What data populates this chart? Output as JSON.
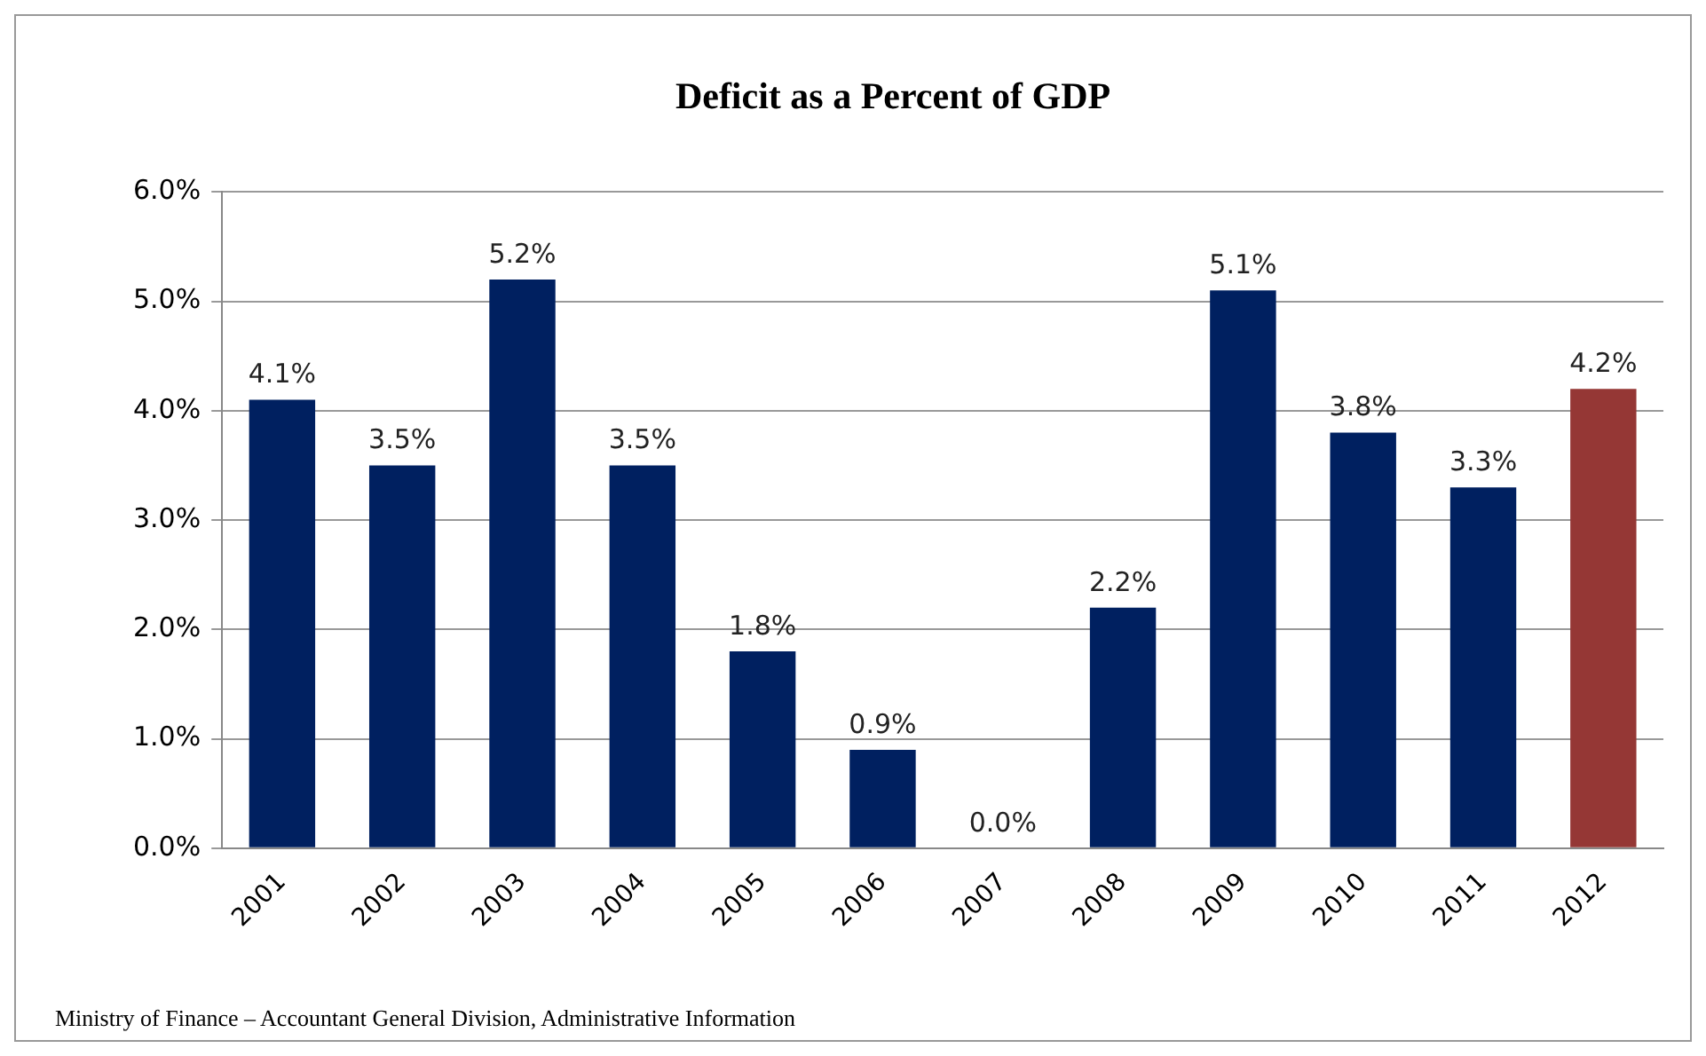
{
  "chart_data": {
    "type": "bar",
    "title": "Deficit as a Percent of GDP",
    "categories": [
      "2001",
      "2002",
      "2003",
      "2004",
      "2005",
      "2006",
      "2007",
      "2008",
      "2009",
      "2010",
      "2011",
      "2012"
    ],
    "values": [
      4.1,
      3.5,
      5.2,
      3.5,
      1.8,
      0.9,
      0.0,
      2.2,
      5.1,
      3.8,
      3.3,
      4.2
    ],
    "colors": [
      "#002060",
      "#002060",
      "#002060",
      "#002060",
      "#002060",
      "#002060",
      "#002060",
      "#002060",
      "#002060",
      "#002060",
      "#002060",
      "#953735"
    ],
    "value_labels": [
      "4.1%",
      "3.5%",
      "5.2%",
      "3.5%",
      "1.8%",
      "0.9%",
      "0.0%",
      "2.2%",
      "5.1%",
      "3.8%",
      "3.3%",
      "4.2%"
    ],
    "ylim": [
      0,
      6
    ],
    "yticks": [
      {
        "value": 0,
        "label": "0.0%"
      },
      {
        "value": 1,
        "label": "1.0%"
      },
      {
        "value": 2,
        "label": "2.0%"
      },
      {
        "value": 3,
        "label": "3.0%"
      },
      {
        "value": 4,
        "label": "4.0%"
      },
      {
        "value": 5,
        "label": "5.0%"
      },
      {
        "value": 6,
        "label": "6.0%"
      }
    ],
    "grid": "y",
    "legend": false,
    "annotations": [
      "Ministry of Finance – Accountant General Division, Administrative Information"
    ]
  }
}
